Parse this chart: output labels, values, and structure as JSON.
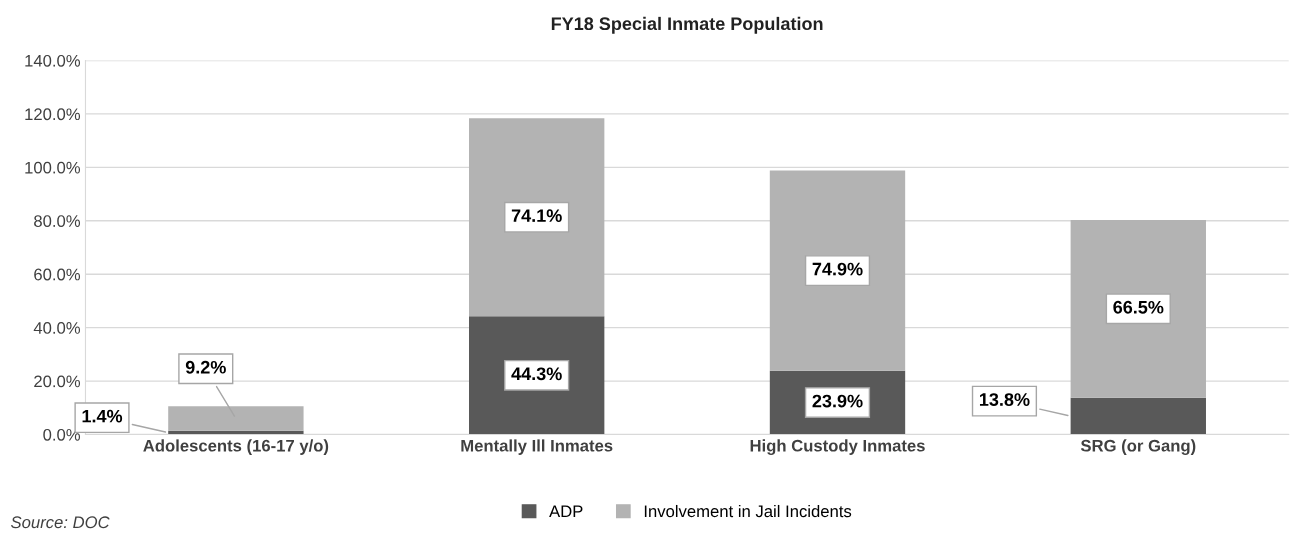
{
  "chart_data": {
    "type": "bar",
    "title": "FY18 Special Inmate Population",
    "categories": [
      "Adolescents (16-17 y/o)",
      "Mentally Ill Inmates",
      "High Custody Inmates",
      "SRG (or Gang)"
    ],
    "stacked": true,
    "series": [
      {
        "name": "ADP",
        "color": "#595959",
        "values": [
          1.4,
          44.3,
          23.9,
          13.8
        ],
        "value_labels": [
          "1.4%",
          "44.3%",
          "23.9%",
          "13.8%"
        ]
      },
      {
        "name": "Involvement in Jail Incidents",
        "color": "#b3b3b3",
        "values": [
          9.2,
          74.1,
          74.9,
          66.5
        ],
        "value_labels": [
          "9.2%",
          "74.1%",
          "74.9%",
          "66.5%"
        ]
      }
    ],
    "ylim": [
      0,
      140
    ],
    "yticks": [
      {
        "value": 0,
        "label": "0.0%"
      },
      {
        "value": 20,
        "label": "20.0%"
      },
      {
        "value": 40,
        "label": "40.0%"
      },
      {
        "value": 60,
        "label": "60.0%"
      },
      {
        "value": 80,
        "label": "80.0%"
      },
      {
        "value": 100,
        "label": "100.0%"
      },
      {
        "value": 120,
        "label": "120.0%"
      },
      {
        "value": 140,
        "label": "140.0%"
      }
    ],
    "grid": "y",
    "legend": "bottom",
    "annotations": [
      "Source: DOC"
    ]
  }
}
